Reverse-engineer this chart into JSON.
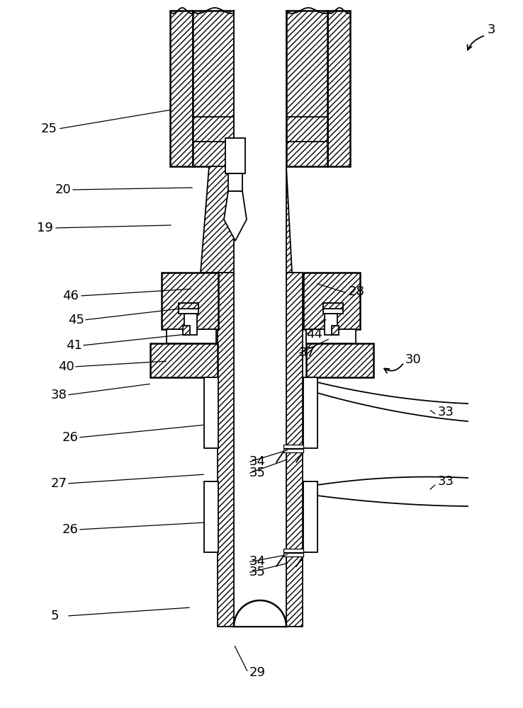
{
  "bg_color": "#ffffff",
  "line_color": "#000000",
  "figsize": [
    7.38,
    10.0
  ],
  "dpi": 100
}
